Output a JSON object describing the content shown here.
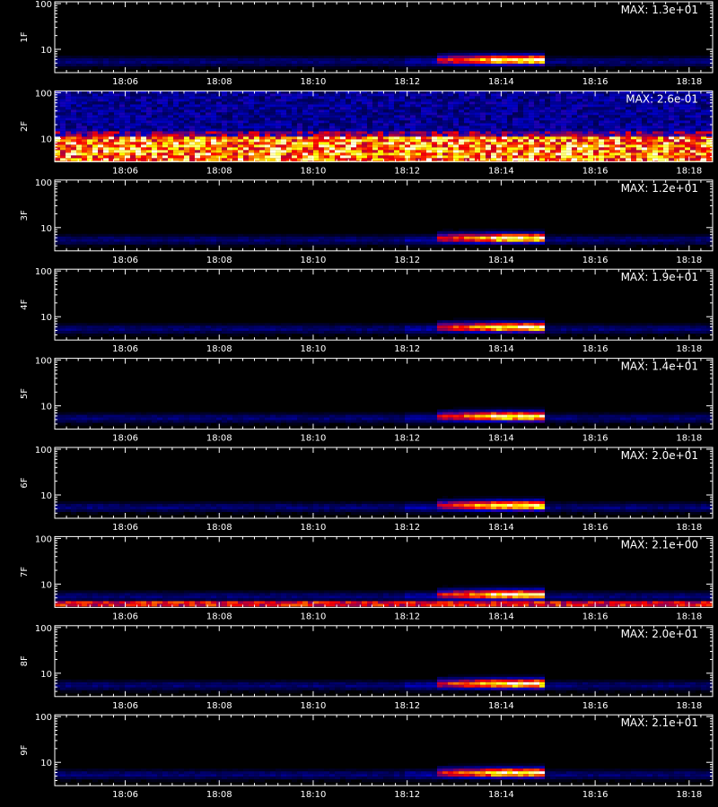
{
  "chart_data": {
    "type": "heatmap",
    "xticks": [
      "18:06",
      "18:08",
      "18:10",
      "18:12",
      "18:14",
      "18:16",
      "18:18"
    ],
    "xtick_minutes": [
      6,
      8,
      10,
      12,
      14,
      16,
      18
    ],
    "xlim_minutes": [
      4.5,
      18.5
    ],
    "ytick_labels": [
      "100",
      "10"
    ],
    "y_scale": "log",
    "colormap": [
      "#000000",
      "#0000c8",
      "#ff0000",
      "#ffff00",
      "#ffffff"
    ],
    "panels": [
      {
        "name": "1F",
        "max_label": "MAX: 1.3e+01",
        "pattern": "burst"
      },
      {
        "name": "2F",
        "max_label": "MAX: 2.6e-01",
        "pattern": "noise"
      },
      {
        "name": "3F",
        "max_label": "MAX: 1.2e+01",
        "pattern": "burst"
      },
      {
        "name": "4F",
        "max_label": "MAX: 1.9e+01",
        "pattern": "burst"
      },
      {
        "name": "5F",
        "max_label": "MAX: 1.4e+01",
        "pattern": "burst"
      },
      {
        "name": "6F",
        "max_label": "MAX: 2.0e+01",
        "pattern": "burst"
      },
      {
        "name": "7F",
        "max_label": "MAX: 2.1e+00",
        "pattern": "burst-noise"
      },
      {
        "name": "8F",
        "max_label": "MAX: 2.0e+01",
        "pattern": "burst"
      },
      {
        "name": "9F",
        "max_label": "MAX: 2.1e+01",
        "pattern": "burst"
      }
    ]
  }
}
